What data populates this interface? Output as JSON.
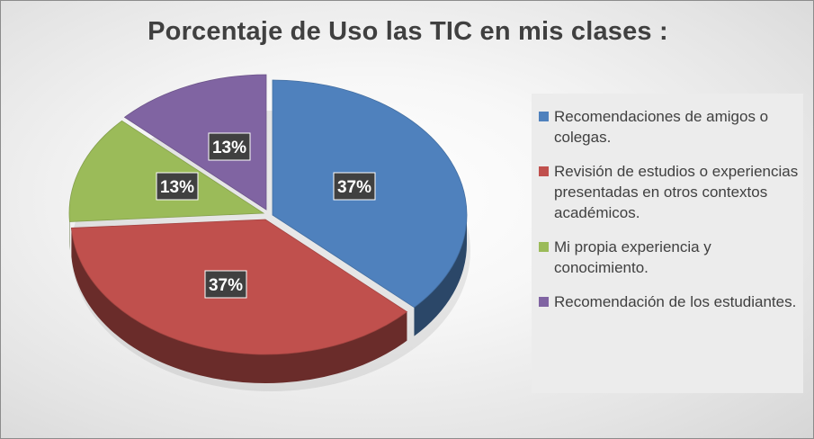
{
  "chart_data": {
    "type": "pie",
    "title": "Porcentaje de Uso las TIC en mis clases :",
    "categories": [
      "Recomendaciones de amigos o colegas.",
      "Revisión de estudios o experiencias presentadas en otros contextos académicos.",
      "Mi propia experiencia y conocimiento.",
      "Recomendación de los estudiantes."
    ],
    "values": [
      37,
      37,
      13,
      13
    ],
    "data_labels": [
      "37%",
      "37%",
      "13%",
      "13%"
    ],
    "colors": [
      "#4f81bd",
      "#c0504d",
      "#9bbb59",
      "#8064a2"
    ],
    "legend_position": "right",
    "exploded": true,
    "style": "3d"
  }
}
